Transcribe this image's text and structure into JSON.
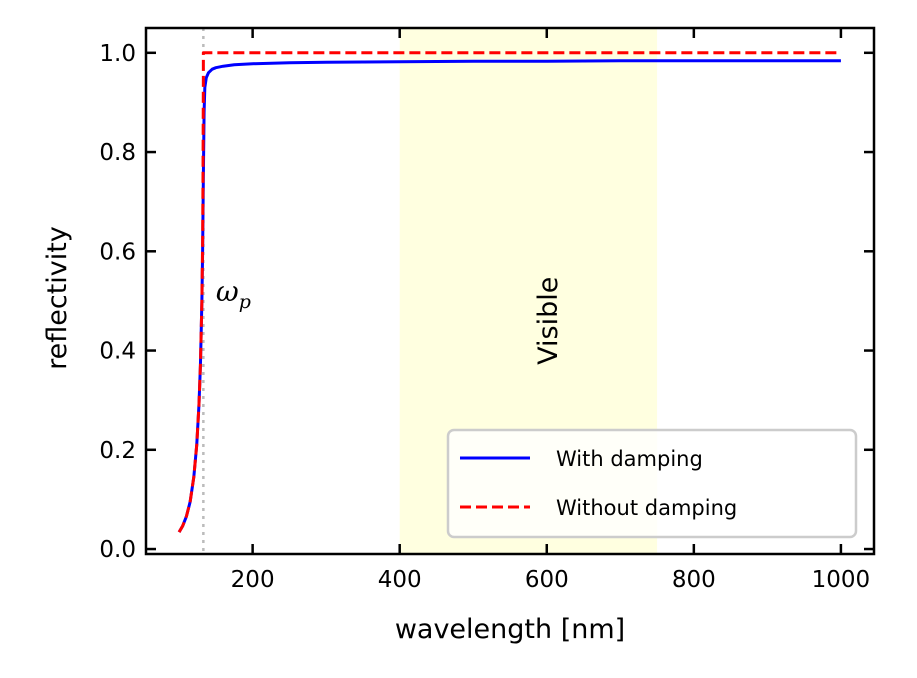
{
  "chart_data": {
    "type": "line",
    "title": "",
    "xlabel": "wavelength [nm]",
    "ylabel": "reflectivity",
    "xlim": [
      55,
      1045
    ],
    "ylim": [
      -0.01,
      1.05
    ],
    "xticks": [
      200,
      400,
      600,
      800,
      1000
    ],
    "xtick_labels": [
      "200",
      "400",
      "600",
      "800",
      "1000"
    ],
    "yticks": [
      0.0,
      0.2,
      0.4,
      0.6,
      0.8,
      1.0
    ],
    "ytick_labels": [
      "0.0",
      "0.2",
      "0.4",
      "0.6",
      "0.8",
      "1.0"
    ],
    "grid": false,
    "legend_placement": "lower-right",
    "plasma_wavelength_nm": 133,
    "plasma_label": "ω",
    "plasma_label_sub": "p",
    "plasma_label_position": [
      150,
      0.5
    ],
    "visible_band": {
      "range_nm": [
        400,
        750
      ],
      "label": "Visible",
      "label_position": [
        600,
        0.45
      ],
      "color": "#ffffe0"
    },
    "series": [
      {
        "name": "With damping",
        "color": "#0000ff",
        "style": "solid",
        "x": [
          100,
          105,
          110,
          115,
          120,
          124,
          127,
          129,
          131,
          132,
          133,
          134,
          135,
          137,
          140,
          145,
          150,
          160,
          175,
          200,
          250,
          300,
          400,
          500,
          600,
          700,
          800,
          900,
          1000
        ],
        "y": [
          0.034,
          0.047,
          0.066,
          0.095,
          0.145,
          0.21,
          0.29,
          0.37,
          0.5,
          0.6,
          0.75,
          0.88,
          0.93,
          0.95,
          0.96,
          0.967,
          0.97,
          0.973,
          0.976,
          0.978,
          0.98,
          0.981,
          0.982,
          0.983,
          0.983,
          0.984,
          0.984,
          0.984,
          0.984
        ]
      },
      {
        "name": "Without damping",
        "color": "#ff0000",
        "style": "dashed",
        "x": [
          100,
          105,
          110,
          115,
          120,
          124,
          127,
          129,
          131,
          132,
          132.5,
          133,
          133.01,
          200,
          400,
          600,
          800,
          1000
        ],
        "y": [
          0.034,
          0.047,
          0.066,
          0.095,
          0.145,
          0.21,
          0.29,
          0.37,
          0.5,
          0.62,
          0.75,
          0.95,
          1.0,
          1.0,
          1.0,
          1.0,
          1.0,
          1.0
        ]
      }
    ]
  }
}
